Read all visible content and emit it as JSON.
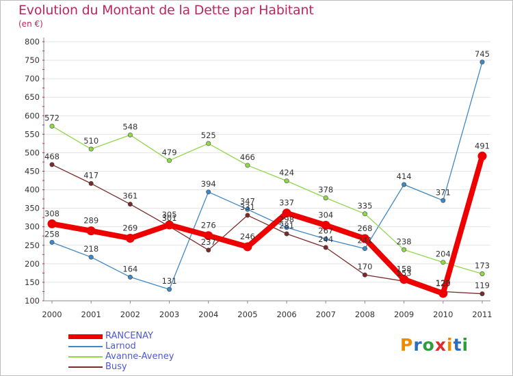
{
  "header": {
    "title": "Evolution du Montant de la Dette par Habitant",
    "unit": "(en €)"
  },
  "logo": {
    "text": "Proxiti",
    "colors": [
      "#f08a00",
      "#2a6fbf",
      "#2e9e3c",
      "#e02b2b",
      "#f08a00",
      "#2a6fbf",
      "#2e9e3c"
    ]
  },
  "colors": {
    "title": "#c0245f",
    "axis_text": "#333333",
    "grid": "#e3e3e3",
    "axis": "#888888",
    "tick_red": "#c0245f"
  },
  "chart_data": {
    "type": "line",
    "title": "Evolution du Montant de la Dette par Habitant",
    "subtitle": "(en €)",
    "xlabel": "",
    "ylabel": "",
    "x": [
      2000,
      2001,
      2002,
      2003,
      2004,
      2005,
      2006,
      2007,
      2008,
      2009,
      2010,
      2011
    ],
    "ylim": [
      100,
      800
    ],
    "yticks": [
      100,
      150,
      200,
      250,
      300,
      350,
      400,
      450,
      500,
      550,
      600,
      650,
      700,
      750,
      800
    ],
    "grid": "horizontal",
    "legend_position": "bottom-left",
    "series": [
      {
        "name": "Larnod",
        "color": "#3f88c5",
        "width": 1.3,
        "marker": 3.2,
        "values": [
          258,
          218,
          164,
          131,
          394,
          347,
          298,
          267,
          241,
          414,
          371,
          745
        ],
        "labels": [
          "258",
          "218",
          "164",
          "131",
          "394",
          "347",
          "298",
          "267",
          "241",
          "414",
          "371",
          "745"
        ]
      },
      {
        "name": "Avanne-Aveney",
        "color": "#8ed84a",
        "width": 1.3,
        "marker": 3.2,
        "values": [
          572,
          510,
          548,
          479,
          525,
          466,
          424,
          378,
          335,
          238,
          204,
          173
        ],
        "labels": [
          "572",
          "510",
          "548",
          "479",
          "525",
          "466",
          "424",
          "378",
          "335",
          "238",
          "204",
          "173"
        ]
      },
      {
        "name": "Busy",
        "color": "#7a2a2a",
        "width": 1.3,
        "marker": 3.2,
        "values": [
          468,
          417,
          361,
          301,
          237,
          331,
          281,
          244,
          170,
          153,
          125,
          119
        ],
        "labels": [
          "468",
          "417",
          "361",
          "301",
          "237",
          "331",
          "281",
          "244",
          "170",
          "153",
          "125",
          "119"
        ]
      },
      {
        "name": "RANCENAY",
        "color": "#ee0000",
        "width": 8,
        "marker": 6.5,
        "values": [
          308,
          289,
          269,
          305,
          276,
          246,
          337,
          304,
          268,
          158,
          120,
          491
        ],
        "labels": [
          "308",
          "289",
          "269",
          "305",
          "276",
          "246",
          "337",
          "304",
          "268",
          "158",
          "120",
          "491"
        ]
      }
    ]
  },
  "legend": {
    "items": [
      {
        "label": "RANCENAY",
        "color": "#ee0000",
        "thick": 7
      },
      {
        "label": "Larnod",
        "color": "#3f88c5",
        "thick": 2
      },
      {
        "label": "Avanne-Aveney",
        "color": "#8ed84a",
        "thick": 2
      },
      {
        "label": "Busy",
        "color": "#7a2a2a",
        "thick": 2
      }
    ]
  }
}
